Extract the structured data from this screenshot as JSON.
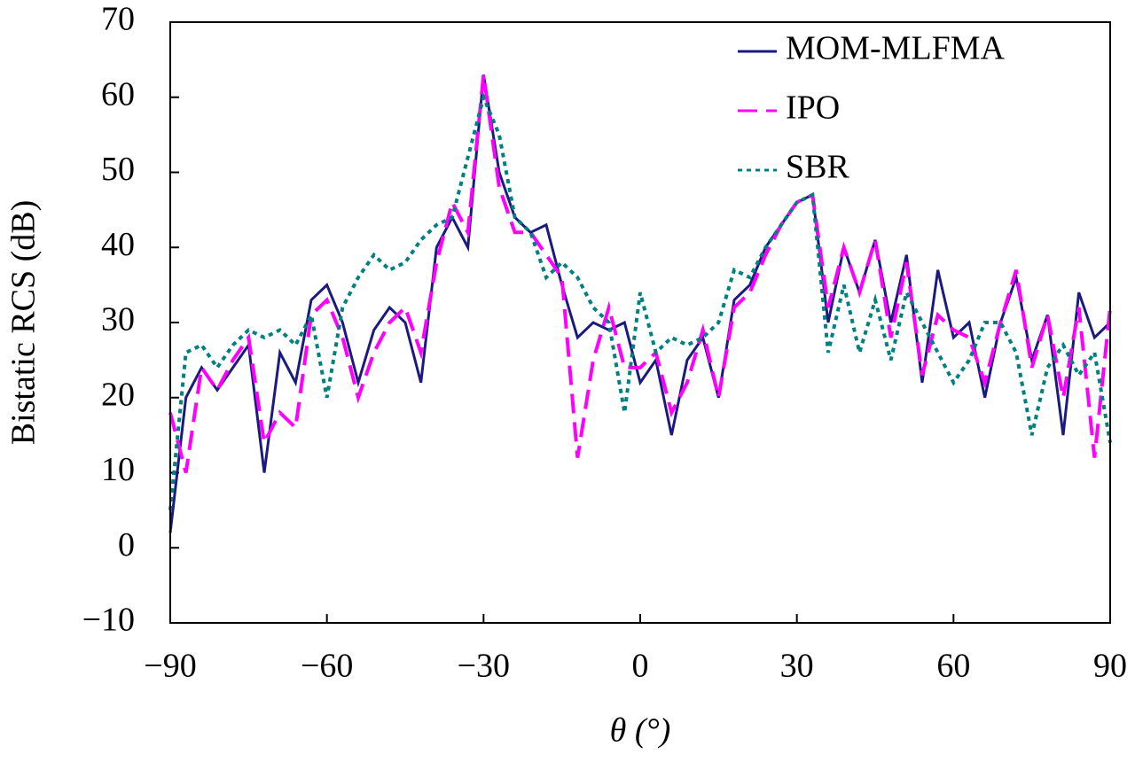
{
  "chart_data": {
    "type": "line",
    "x_label": "θ (°)",
    "y_label": "Bistatic RCS (dB)",
    "xlim": [
      -90,
      90
    ],
    "ylim": [
      -10,
      70
    ],
    "xticks": [
      {
        "value": -90,
        "label": "−90"
      },
      {
        "value": -60,
        "label": "−60"
      },
      {
        "value": -30,
        "label": "−30"
      },
      0,
      30,
      60,
      90
    ],
    "yticks": [
      {
        "value": -10,
        "label": "−10"
      },
      0,
      10,
      20,
      30,
      40,
      50,
      60,
      70
    ],
    "legend": "upper-right",
    "x": [
      -90,
      -87,
      -84,
      -81,
      -78,
      -75,
      -72,
      -69,
      -66,
      -63,
      -60,
      -57,
      -54,
      -51,
      -48,
      -45,
      -42,
      -39,
      -36,
      -33,
      -30,
      -27,
      -24,
      -21,
      -18,
      -15,
      -12,
      -9,
      -6,
      -3,
      0,
      3,
      6,
      9,
      12,
      15,
      18,
      21,
      24,
      27,
      30,
      33,
      36,
      39,
      42,
      45,
      48,
      51,
      54,
      57,
      60,
      63,
      66,
      69,
      72,
      75,
      78,
      81,
      84,
      87,
      90
    ],
    "series": [
      {
        "name": "MOM-MLFMA",
        "color": "#1a1a80",
        "dash": "solid",
        "values": [
          2,
          20,
          24,
          21,
          24,
          27,
          10,
          26,
          22,
          33,
          35,
          30,
          22,
          29,
          32,
          30,
          22,
          40,
          44,
          40,
          63,
          50,
          44,
          42,
          43,
          35,
          28,
          30,
          29,
          30,
          22,
          25,
          15,
          25,
          28,
          20,
          33,
          35,
          40,
          43,
          46,
          47,
          30,
          40,
          34,
          41,
          30,
          39,
          22,
          37,
          28,
          30,
          20,
          30,
          36,
          25,
          31,
          15,
          34,
          28,
          30
        ]
      },
      {
        "name": "IPO",
        "color": "#ff00ff",
        "dash": "dashed",
        "values": [
          18,
          10,
          24,
          21,
          25,
          28,
          14,
          18,
          16,
          31,
          33,
          28,
          20,
          26,
          30,
          32,
          26,
          38,
          46,
          42,
          63,
          48,
          42,
          42,
          39,
          36,
          12,
          25,
          32,
          24,
          24,
          26,
          18,
          22,
          29,
          20,
          32,
          34,
          39,
          43,
          46,
          47,
          32,
          40,
          34,
          41,
          28,
          38,
          23,
          31,
          29,
          28,
          22,
          30,
          37,
          24,
          31,
          20,
          32,
          12,
          32
        ]
      },
      {
        "name": "SBR",
        "color": "#008080",
        "dash": "dotted",
        "values": [
          5,
          26,
          27,
          24,
          27,
          29,
          28,
          29,
          27,
          31,
          20,
          32,
          36,
          39,
          37,
          38,
          41,
          43,
          44,
          52,
          60,
          55,
          44,
          42,
          36,
          38,
          36,
          32,
          30,
          18,
          34,
          26,
          28,
          27,
          28,
          30,
          37,
          36,
          40,
          43,
          46,
          47,
          26,
          35,
          26,
          33,
          25,
          34,
          30,
          26,
          22,
          25,
          30,
          30,
          26,
          15,
          24,
          27,
          23,
          26,
          14
        ]
      }
    ]
  }
}
